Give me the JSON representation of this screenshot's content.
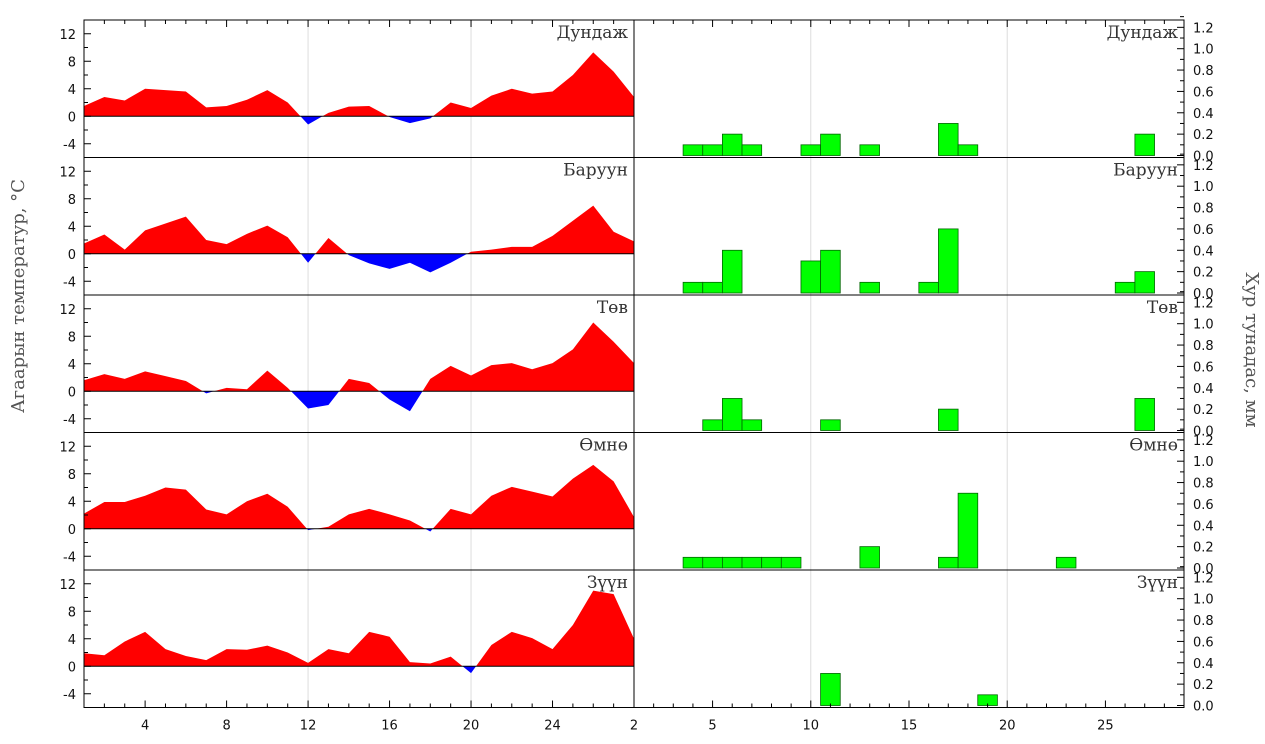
{
  "colors": {
    "warm_fill": "#ff0000",
    "cold_fill": "#0000ff",
    "precip_fill": "#00ff00",
    "precip_edge": "#006600",
    "grid": "#dddddd",
    "axis": "#000000"
  },
  "ylabel_left": "Агаарын температур, °C",
  "ylabel_right": "Хур тунадас, мм",
  "temp_xticks": [
    {
      "x": 4,
      "label": "4"
    },
    {
      "x": 8,
      "label": "8"
    },
    {
      "x": 12,
      "label": "12"
    },
    {
      "x": 16,
      "label": "16"
    },
    {
      "x": 20,
      "label": "20"
    },
    {
      "x": 24,
      "label": "24"
    },
    {
      "x": 28,
      "label": "2"
    }
  ],
  "precip_xticks": [
    {
      "x": 5,
      "label": "5"
    },
    {
      "x": 10,
      "label": "10"
    },
    {
      "x": 15,
      "label": "15"
    },
    {
      "x": 20,
      "label": "20"
    },
    {
      "x": 25,
      "label": "25"
    }
  ],
  "temp_yticks": [
    "12",
    "8",
    "4",
    "0",
    "-4"
  ],
  "precip_yticks": [
    "1.2",
    "1.0",
    "0.8",
    "0.6",
    "0.4",
    "0.2",
    "0.0"
  ],
  "chart_data": [
    {
      "type": "area",
      "panel": "Дундаж",
      "title": "Дундаж",
      "xlim": [
        1,
        28
      ],
      "ylim": [
        -6,
        14
      ],
      "x": [
        1,
        2,
        3,
        4,
        5,
        6,
        7,
        8,
        9,
        10,
        11,
        12,
        13,
        14,
        15,
        16,
        17,
        18,
        19,
        20,
        21,
        22,
        23,
        24,
        25,
        26,
        27,
        28
      ],
      "values": [
        1.5,
        2.8,
        2.3,
        4,
        3.8,
        3.6,
        1.3,
        1.5,
        2.4,
        3.8,
        2,
        -1.2,
        0.5,
        1.4,
        1.5,
        -0.1,
        -1,
        -0.3,
        2,
        1.2,
        3,
        4,
        3.3,
        3.6,
        6,
        9.3,
        6.5,
        2.8
      ]
    },
    {
      "type": "bar",
      "panel": "Дундаж",
      "title": "Дундаж",
      "xlim": [
        1,
        29
      ],
      "ylim": [
        0,
        1.25
      ],
      "x": [
        4,
        5,
        6,
        7,
        10,
        11,
        13,
        17,
        18,
        27
      ],
      "values": [
        0.1,
        0.1,
        0.2,
        0.1,
        0.1,
        0.2,
        0.1,
        0.3,
        0.1,
        0.2
      ]
    },
    {
      "type": "area",
      "panel": "Баруун",
      "title": "Баруун",
      "xlim": [
        1,
        28
      ],
      "ylim": [
        -6,
        14
      ],
      "x": [
        1,
        2,
        3,
        4,
        5,
        6,
        7,
        8,
        9,
        10,
        11,
        12,
        13,
        14,
        15,
        16,
        17,
        18,
        19,
        20,
        21,
        22,
        23,
        24,
        25,
        26,
        27,
        28
      ],
      "values": [
        1.5,
        2.8,
        0.6,
        3.4,
        4.4,
        5.4,
        2,
        1.4,
        2.9,
        4.1,
        2.4,
        -1.3,
        2.3,
        -0.2,
        -1.4,
        -2.2,
        -1.3,
        -2.7,
        -1.3,
        0.3,
        0.6,
        1,
        1,
        2.6,
        4.8,
        7,
        3.2,
        1.8
      ]
    },
    {
      "type": "bar",
      "panel": "Баруун",
      "title": "Баруун",
      "xlim": [
        1,
        29
      ],
      "ylim": [
        0,
        1.25
      ],
      "x": [
        4,
        5,
        6,
        10,
        11,
        13,
        16,
        17,
        26,
        27
      ],
      "values": [
        0.1,
        0.1,
        0.4,
        0.3,
        0.4,
        0.1,
        0.1,
        0.6,
        0.1,
        0.2
      ]
    },
    {
      "type": "area",
      "panel": "Төв",
      "title": "Төв",
      "xlim": [
        1,
        28
      ],
      "ylim": [
        -6,
        14
      ],
      "x": [
        1,
        2,
        3,
        4,
        5,
        6,
        7,
        8,
        9,
        10,
        11,
        12,
        13,
        14,
        15,
        16,
        17,
        18,
        19,
        20,
        21,
        22,
        23,
        24,
        25,
        26,
        27,
        28
      ],
      "values": [
        1.6,
        2.5,
        1.8,
        2.9,
        2.2,
        1.5,
        -0.3,
        0.5,
        0.3,
        3,
        0.5,
        -2.5,
        -2,
        1.8,
        1.2,
        -1.2,
        -2.9,
        1.8,
        3.7,
        2.3,
        3.8,
        4.1,
        3.2,
        4.1,
        6.1,
        10,
        7.2,
        4.1
      ]
    },
    {
      "type": "bar",
      "panel": "Төв",
      "title": "Төв",
      "xlim": [
        1,
        29
      ],
      "ylim": [
        0,
        1.25
      ],
      "x": [
        5,
        6,
        7,
        11,
        17,
        27
      ],
      "values": [
        0.1,
        0.3,
        0.1,
        0.1,
        0.2,
        0.3
      ]
    },
    {
      "type": "area",
      "panel": "Өмнө",
      "title": "Өмнө",
      "xlim": [
        1,
        28
      ],
      "ylim": [
        -6,
        14
      ],
      "x": [
        1,
        2,
        3,
        4,
        5,
        6,
        7,
        8,
        9,
        10,
        11,
        12,
        13,
        14,
        15,
        16,
        17,
        18,
        19,
        20,
        21,
        22,
        23,
        24,
        25,
        26,
        27,
        28
      ],
      "values": [
        2.2,
        3.9,
        3.9,
        4.8,
        6,
        5.7,
        2.8,
        2.1,
        4,
        5.1,
        3.2,
        -0.2,
        0.3,
        2.1,
        2.9,
        2.1,
        1.2,
        -0.4,
        2.9,
        2.1,
        4.8,
        6.1,
        5.4,
        4.7,
        7.3,
        9.3,
        6.9,
        1.7
      ]
    },
    {
      "type": "bar",
      "panel": "Өмнө",
      "title": "Өмнө",
      "xlim": [
        1,
        29
      ],
      "ylim": [
        0,
        1.25
      ],
      "x": [
        4,
        5,
        6,
        7,
        8,
        9,
        13,
        17,
        18,
        23
      ],
      "values": [
        0.1,
        0.1,
        0.1,
        0.1,
        0.1,
        0.1,
        0.2,
        0.1,
        0.7,
        0.1
      ]
    },
    {
      "type": "area",
      "panel": "Зүүн",
      "title": "Зүүн",
      "xlim": [
        1,
        28
      ],
      "ylim": [
        -6,
        14
      ],
      "x": [
        1,
        2,
        3,
        4,
        5,
        6,
        7,
        8,
        9,
        10,
        11,
        12,
        13,
        14,
        15,
        16,
        17,
        18,
        19,
        20,
        21,
        22,
        23,
        24,
        25,
        26,
        27,
        28
      ],
      "values": [
        1.9,
        1.6,
        3.6,
        5,
        2.5,
        1.5,
        0.9,
        2.5,
        2.4,
        3,
        2,
        0.5,
        2.5,
        1.9,
        5,
        4.3,
        0.6,
        0.4,
        1.4,
        -1,
        3.1,
        5,
        4.1,
        2.5,
        6,
        11,
        10.5,
        4
      ]
    },
    {
      "type": "bar",
      "panel": "Зүүн",
      "title": "Зүүн",
      "xlim": [
        1,
        29
      ],
      "ylim": [
        0,
        1.25
      ],
      "x": [
        11,
        19
      ],
      "values": [
        0.3,
        0.1
      ]
    }
  ]
}
